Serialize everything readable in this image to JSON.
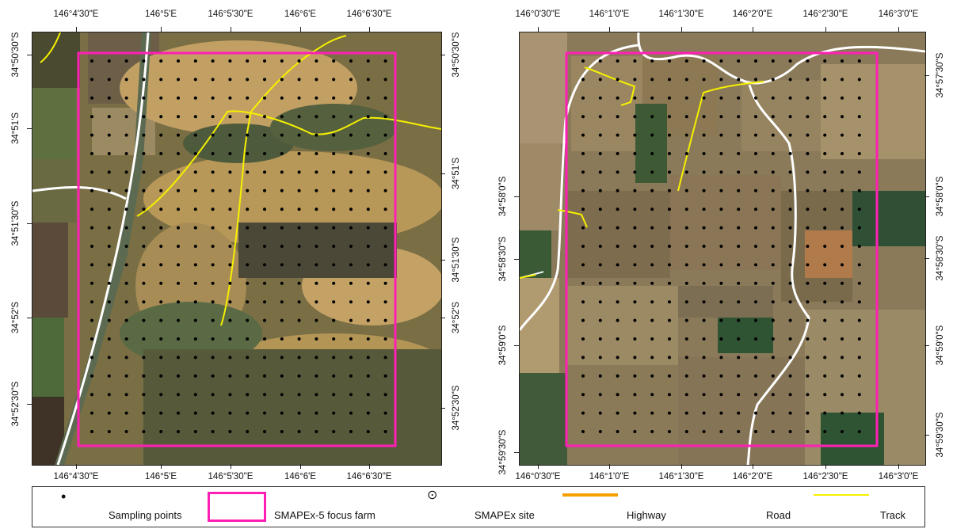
{
  "maps": [
    {
      "id": "left",
      "top_ticks": [
        "146°4'30\"E",
        "146°5'E",
        "146°5'30\"E",
        "146°6'E",
        "146°6'30\"E"
      ],
      "bottom_ticks": [
        "146°4'30\"E",
        "146°5'E",
        "146°5'30\"E",
        "146°6'E",
        "146°6'30\"E"
      ],
      "left_ticks": [
        "34°50'30\"S",
        "34°51'S",
        "34°51'30\"S",
        "34°52'S",
        "34°52'30\"S"
      ],
      "right_ticks": [
        "34°50'30\"S",
        "34°51'S",
        "34°51'30\"S",
        "34°52'S",
        "34°52'30\"S"
      ]
    },
    {
      "id": "right",
      "top_ticks": [
        "146°0'30\"E",
        "146°1'0\"E",
        "146°1'30\"E",
        "146°2'0\"E",
        "146°2'30\"E",
        "146°3'0\"E"
      ],
      "bottom_ticks": [
        "146°0'30\"E",
        "146°1'0\"E",
        "146°1'30\"E",
        "146°2'0\"E",
        "146°2'30\"E",
        "146°3'0\"E"
      ],
      "left_ticks": [
        "34°58'0\"S",
        "34°58'30\"S",
        "34°59'0\"S",
        "34°59'30\"S"
      ],
      "right_ticks": [
        "34°57'30\"S",
        "34°58'0\"S",
        "34°58'30\"S",
        "34°59'0\"S",
        "34°59'30\"S"
      ]
    }
  ],
  "legend": {
    "sampling_points": "Sampling points",
    "focus_farm": "SMAPEx-5 focus farm",
    "site": "SMAPEx site",
    "highway": "Highway",
    "road": "Road",
    "track": "Track"
  },
  "colors": {
    "focus_farm": "#ff1fb4",
    "highway": "#f5a000",
    "road": "#ffffff",
    "track": "#f5f000",
    "sampling_point": "#000000"
  }
}
